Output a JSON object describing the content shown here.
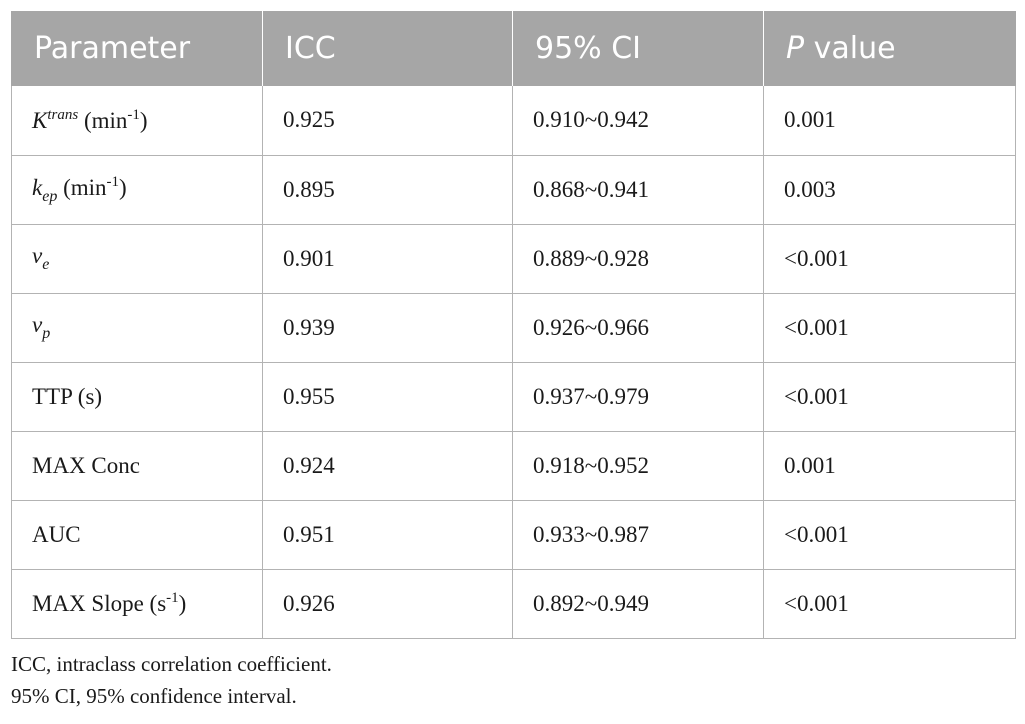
{
  "table": {
    "headers": {
      "parameter": "Parameter",
      "icc": "ICC",
      "ci": "95% CI",
      "p_italic": "P",
      "p_rest": " value"
    },
    "rows": [
      {
        "parameter": {
          "base": "K",
          "sup": "trans",
          "unit": " (min",
          "unit_sup": "-1",
          "unit_end": ")"
        },
        "icc": "0.925",
        "ci": "0.910~0.942",
        "p": "0.001"
      },
      {
        "parameter": {
          "base": "k",
          "sub": "ep",
          "unit": " (min",
          "unit_sup": "-1",
          "unit_end": ")"
        },
        "icc": "0.895",
        "ci": "0.868~0.941",
        "p": "0.003"
      },
      {
        "parameter": {
          "base": "v",
          "sub": "e"
        },
        "icc": "0.901",
        "ci": "0.889~0.928",
        "p": "<0.001"
      },
      {
        "parameter": {
          "base": "v",
          "sub": "p"
        },
        "icc": "0.939",
        "ci": "0.926~0.966",
        "p": "<0.001"
      },
      {
        "parameter": {
          "text": "TTP (s)"
        },
        "icc": "0.955",
        "ci": "0.937~0.979",
        "p": "<0.001"
      },
      {
        "parameter": {
          "text": "MAX Conc"
        },
        "icc": "0.924",
        "ci": "0.918~0.952",
        "p": "0.001"
      },
      {
        "parameter": {
          "text": "AUC"
        },
        "icc": "0.951",
        "ci": "0.933~0.987",
        "p": "<0.001"
      },
      {
        "parameter": {
          "text": "MAX Slope (s",
          "unit_sup": "-1",
          "unit_end": ")"
        },
        "icc": "0.926",
        "ci": "0.892~0.949",
        "p": "<0.001"
      }
    ]
  },
  "footnotes": [
    "ICC, intraclass correlation coefficient.",
    "95% CI, 95% confidence interval."
  ]
}
